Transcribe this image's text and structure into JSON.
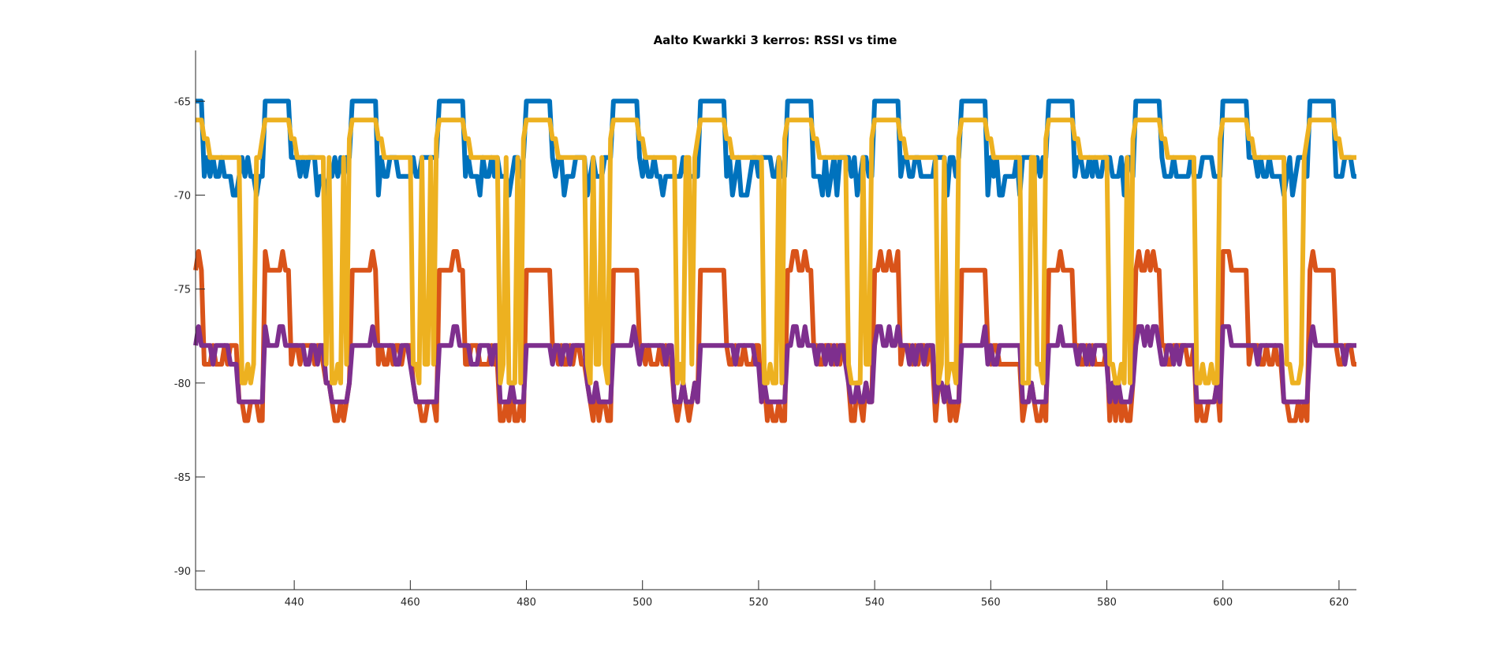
{
  "chart_data": {
    "type": "line",
    "title": "Aalto Kwarkki 3 kerros: RSSI vs time",
    "xlabel": "",
    "ylabel": "",
    "xlim": [
      423,
      623
    ],
    "ylim": [
      -91,
      -62.3
    ],
    "xticks": [
      440,
      460,
      480,
      500,
      520,
      540,
      560,
      580,
      600,
      620
    ],
    "yticks": [
      -65,
      -70,
      -75,
      -80,
      -85,
      -90
    ],
    "grid": false,
    "legend": "none",
    "period": 15,
    "series": [
      {
        "color": "#0072BD",
        "x": [
          423,
          425.7,
          426.5,
          434.6,
          435.4,
          438.7,
          439.5,
          438,
          455,
          438.5,
          450,
          453.4,
          454.2,
          449.5,
          455,
          459.3,
          460.1,
          423,
          426,
          428,
          430,
          432,
          441.5,
          444,
          448
        ],
        "y": [
          -65,
          -65,
          -69,
          -69,
          -65,
          -65,
          -68,
          -69,
          -68,
          -69,
          -68,
          -69,
          -70,
          -68,
          -69,
          -68,
          -69,
          -69,
          -69,
          -69,
          -68,
          -68,
          -70,
          -69,
          -68
        ]
      },
      {
        "color": "#D95319",
        "x": [
          423,
          424,
          425,
          426,
          427,
          428,
          429,
          430,
          431,
          432,
          433,
          434,
          434.6,
          435.6,
          436,
          437,
          438,
          439,
          440,
          441,
          442,
          443,
          444,
          445,
          446,
          447,
          447.8
        ],
        "y": [
          -80,
          -82,
          -80,
          -81,
          -82,
          -81,
          -80,
          -81,
          -80,
          -81,
          -80,
          -81,
          -78,
          -74,
          -74,
          -74,
          -74,
          -74,
          -74,
          -74,
          -73,
          -74,
          -74,
          -73,
          -74,
          -74,
          -78
        ]
      },
      {
        "color": "#EDB120",
        "x": [
          423,
          424,
          425,
          426,
          427,
          428,
          429,
          430,
          431,
          432,
          433,
          434,
          434.6,
          435.6,
          436,
          437,
          438,
          439,
          440,
          441,
          442,
          443,
          444,
          445,
          446,
          447,
          447.8
        ],
        "y": [
          -66,
          -66,
          -68,
          -68,
          -68,
          -67,
          -68,
          -68,
          -68,
          -68,
          -68,
          -68,
          -66,
          -66,
          -66,
          -66,
          -66,
          -66,
          -66,
          -66,
          -66,
          -66,
          -68,
          -68,
          -68,
          -68,
          -68
        ]
      },
      {
        "color": "#7E2F8E",
        "x": [
          423,
          424,
          425,
          426,
          427,
          428,
          429,
          430,
          431,
          432,
          433,
          434,
          434.6,
          435.6,
          436,
          437,
          438,
          439,
          440,
          441,
          442,
          443,
          444,
          445,
          446,
          447,
          447.8
        ],
        "y": [
          -79,
          -79,
          -81,
          -81,
          -81,
          -81,
          -81,
          -81,
          -81,
          -81,
          -81,
          -81,
          -78,
          -78,
          -77,
          -77,
          -78,
          -78,
          -78,
          -78,
          -78,
          -78,
          -78,
          -78,
          -78,
          -78,
          -79
        ]
      }
    ],
    "series_labels": {
      "blue": "",
      "orange": "",
      "yellow": "",
      "purple": ""
    }
  }
}
